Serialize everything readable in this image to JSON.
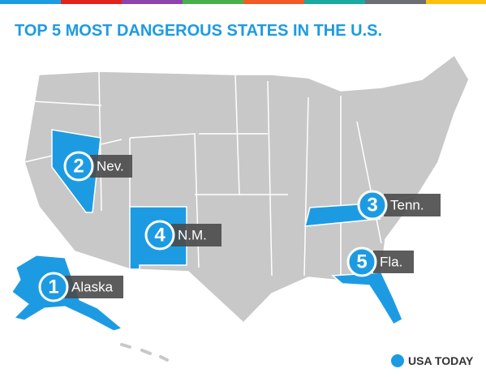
{
  "header": {
    "title": "TOP 5 MOST DANGEROUS STATES IN THE U.S."
  },
  "rankings": [
    {
      "rank": 1,
      "state": "Alaska"
    },
    {
      "rank": 2,
      "state": "Nev."
    },
    {
      "rank": 3,
      "state": "Tenn."
    },
    {
      "rank": 4,
      "state": "N.M."
    },
    {
      "rank": 5,
      "state": "Fla."
    }
  ],
  "logo": {
    "text": "USA TODAY"
  }
}
